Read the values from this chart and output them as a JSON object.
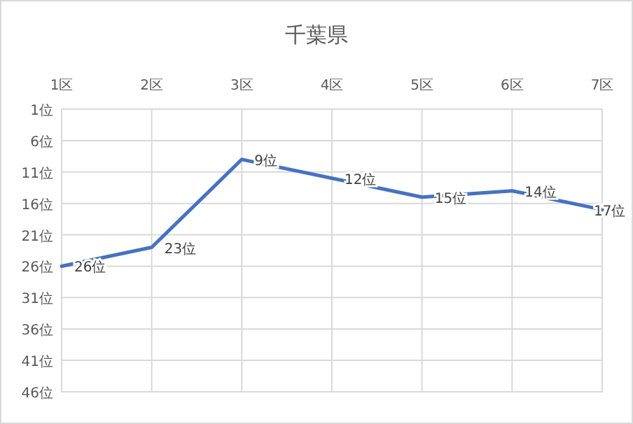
{
  "chart_data": {
    "type": "line",
    "title": "千葉県",
    "categories": [
      "1区",
      "2区",
      "3区",
      "4区",
      "5区",
      "6区",
      "7区"
    ],
    "series": [
      {
        "color": "#4472c4",
        "values": [
          26,
          23,
          9,
          12,
          15,
          14,
          17
        ],
        "value_labels": [
          "26位",
          "23位",
          "9位",
          "12位",
          "15位",
          "14位",
          "17位"
        ]
      }
    ],
    "ylim": [
      46,
      1
    ],
    "yticks": [
      {
        "value": 1,
        "label": "1位"
      },
      {
        "value": 6,
        "label": "6位"
      },
      {
        "value": 11,
        "label": "11位"
      },
      {
        "value": 16,
        "label": "16位"
      },
      {
        "value": 21,
        "label": "21位"
      },
      {
        "value": 26,
        "label": "26位"
      },
      {
        "value": 31,
        "label": "31位"
      },
      {
        "value": 36,
        "label": "36位"
      },
      {
        "value": 41,
        "label": "41位"
      },
      {
        "value": 46,
        "label": "46位"
      }
    ],
    "grid": true,
    "marker": "none",
    "line_style": "solid"
  }
}
